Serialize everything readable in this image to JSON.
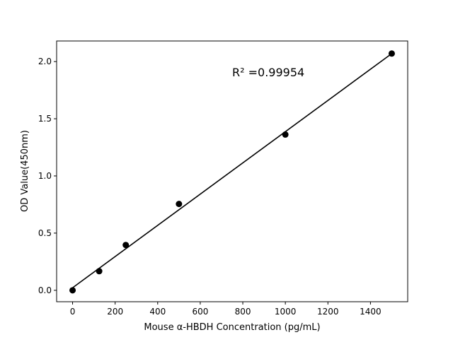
{
  "chart_data": {
    "type": "scatter",
    "title": "",
    "xlabel": "Mouse α-HBDH Concentration (pg/mL)",
    "ylabel": "OD Value(450nm)",
    "xlim": [
      -75,
      1575
    ],
    "ylim": [
      -0.1,
      2.18
    ],
    "x_ticks": [
      0,
      200,
      400,
      600,
      800,
      1000,
      1200,
      1400
    ],
    "y_ticks": [
      0.0,
      0.5,
      1.0,
      1.5,
      2.0
    ],
    "x_tick_labels": [
      "0",
      "200",
      "400",
      "600",
      "800",
      "1000",
      "1200",
      "1400"
    ],
    "y_tick_labels": [
      "0.0",
      "0.5",
      "1.0",
      "1.5",
      "2.0"
    ],
    "grid": false,
    "points": {
      "x": [
        0,
        125,
        250,
        500,
        1000,
        1500
      ],
      "y": [
        0.0,
        0.167,
        0.396,
        0.755,
        1.362,
        2.07
      ]
    },
    "fit_line": {
      "slope": 0.001365,
      "intercept": 0.022,
      "x_range": [
        0,
        1500
      ]
    },
    "annotation": "R² =0.99954",
    "colors": {
      "points": "#000000",
      "line": "#000000"
    }
  }
}
